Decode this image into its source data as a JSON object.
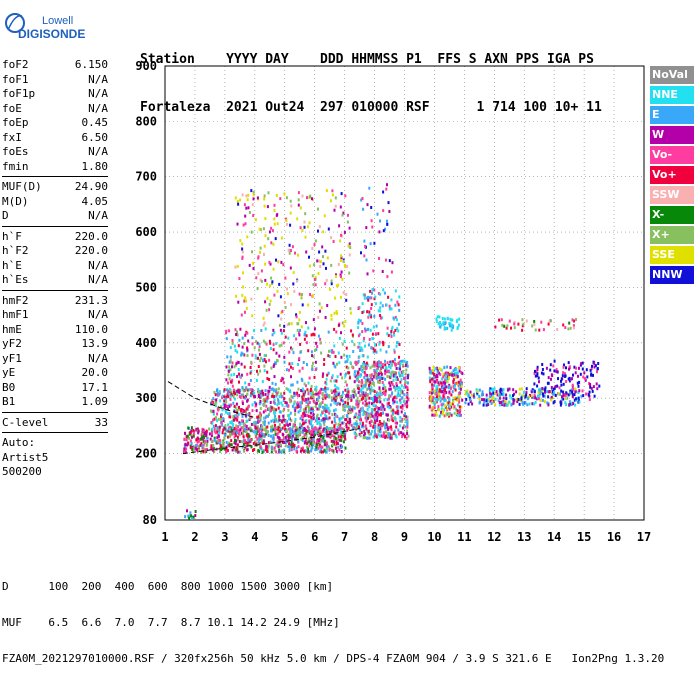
{
  "logo": {
    "line1": "Lowell",
    "line2": "DIGISONDE"
  },
  "header": {
    "line1": "Station    YYYY DAY    DDD HHMMSS P1  FFS S AXN PPS IGA PS",
    "line2": "Fortaleza  2021 Out24  297 010000 RSF      1 714 100 10+ 11"
  },
  "params": [
    {
      "type": "row",
      "label": "foF2",
      "value": "6.150"
    },
    {
      "type": "row",
      "label": "foF1",
      "value": "N/A"
    },
    {
      "type": "row",
      "label": "foF1p",
      "value": "N/A"
    },
    {
      "type": "row",
      "label": "foE",
      "value": "N/A"
    },
    {
      "type": "row",
      "label": "foEp",
      "value": "0.45"
    },
    {
      "type": "row",
      "label": "fxI",
      "value": "6.50"
    },
    {
      "type": "row",
      "label": "foEs",
      "value": "N/A"
    },
    {
      "type": "row",
      "label": "fmin",
      "value": "1.80"
    },
    {
      "type": "sep"
    },
    {
      "type": "row",
      "label": "MUF(D)",
      "value": "24.90"
    },
    {
      "type": "row",
      "label": "M(D)",
      "value": "4.05"
    },
    {
      "type": "row",
      "label": "D",
      "value": "N/A"
    },
    {
      "type": "sep"
    },
    {
      "type": "row",
      "label": "h`F",
      "value": "220.0"
    },
    {
      "type": "row",
      "label": "h`F2",
      "value": "220.0"
    },
    {
      "type": "row",
      "label": "h`E",
      "value": "N/A"
    },
    {
      "type": "row",
      "label": "h`Es",
      "value": "N/A"
    },
    {
      "type": "sep"
    },
    {
      "type": "row",
      "label": "hmF2",
      "value": "231.3"
    },
    {
      "type": "row",
      "label": "hmF1",
      "value": "N/A"
    },
    {
      "type": "row",
      "label": "hmE",
      "value": "110.0"
    },
    {
      "type": "row",
      "label": "yF2",
      "value": "13.9"
    },
    {
      "type": "row",
      "label": "yF1",
      "value": "N/A"
    },
    {
      "type": "row",
      "label": "yE",
      "value": "20.0"
    },
    {
      "type": "row",
      "label": "B0",
      "value": "17.1"
    },
    {
      "type": "row",
      "label": "B1",
      "value": "1.09"
    },
    {
      "type": "sep"
    },
    {
      "type": "row",
      "label": "C-level",
      "value": "33"
    },
    {
      "type": "sep"
    },
    {
      "type": "text",
      "label": "Auto:"
    },
    {
      "type": "text",
      "label": "Artist5"
    },
    {
      "type": "text",
      "label": "500200"
    }
  ],
  "legend": [
    {
      "label": "NoVal",
      "color": "#909090"
    },
    {
      "label": "NNE",
      "color": "#22e0f0"
    },
    {
      "label": "E",
      "color": "#3aa8f8"
    },
    {
      "label": "W",
      "color": "#b400a8"
    },
    {
      "label": "Vo-",
      "color": "#ff3ca0"
    },
    {
      "label": "Vo+",
      "color": "#f0003c"
    },
    {
      "label": "SSW",
      "color": "#f8b0b0"
    },
    {
      "label": "X-",
      "color": "#088808"
    },
    {
      "label": "X+",
      "color": "#88c060"
    },
    {
      "label": "SSE",
      "color": "#e0e000"
    },
    {
      "label": "NNW",
      "color": "#1010d8"
    }
  ],
  "chart_data": {
    "type": "scatter",
    "xlim": [
      1,
      17
    ],
    "ylim": [
      80,
      900
    ],
    "x_ticks": [
      "1",
      "2",
      "3",
      "4",
      "5",
      "6",
      "7",
      "8",
      "9",
      "10",
      "11",
      "12",
      "13",
      "14",
      "15",
      "16",
      "17"
    ],
    "y_ticks": [
      "80",
      "200",
      "300",
      "400",
      "500",
      "600",
      "700",
      "800",
      "900"
    ],
    "grid": "dotted",
    "clusters": [
      {
        "x": [
          1.6,
          7.0
        ],
        "y": [
          205,
          250
        ],
        "n": 700,
        "colors": [
          5,
          4,
          3,
          2,
          7,
          8
        ]
      },
      {
        "x": [
          2.5,
          7.3
        ],
        "y": [
          240,
          320
        ],
        "n": 800,
        "colors": [
          2,
          1,
          4,
          5,
          3,
          8
        ]
      },
      {
        "x": [
          3.0,
          7.3
        ],
        "y": [
          300,
          430
        ],
        "n": 350,
        "colors": [
          1,
          2,
          3,
          4,
          5,
          8
        ]
      },
      {
        "x": [
          3.3,
          7.2
        ],
        "y": [
          430,
          680
        ],
        "n": 300,
        "colors": [
          9,
          9,
          6,
          10,
          3,
          4,
          8
        ]
      },
      {
        "x": [
          7.3,
          9.1
        ],
        "y": [
          230,
          370
        ],
        "n": 650,
        "colors": [
          5,
          4,
          3,
          2,
          1,
          8
        ]
      },
      {
        "x": [
          7.4,
          8.8
        ],
        "y": [
          360,
          500
        ],
        "n": 150,
        "colors": [
          1,
          1,
          2,
          4,
          5
        ]
      },
      {
        "x": [
          7.5,
          8.6
        ],
        "y": [
          520,
          690
        ],
        "n": 40,
        "colors": [
          10,
          3,
          4,
          2
        ]
      },
      {
        "x": [
          9.8,
          10.9
        ],
        "y": [
          270,
          360
        ],
        "n": 300,
        "colors": [
          5,
          4,
          1,
          2,
          3,
          9
        ]
      },
      {
        "x": [
          10.0,
          10.8
        ],
        "y": [
          425,
          450
        ],
        "n": 40,
        "colors": [
          1,
          2
        ]
      },
      {
        "x": [
          11.0,
          14.9
        ],
        "y": [
          290,
          320
        ],
        "n": 260,
        "colors": [
          9,
          2,
          10,
          1,
          3
        ]
      },
      {
        "x": [
          12.0,
          14.7
        ],
        "y": [
          425,
          445
        ],
        "n": 40,
        "colors": [
          6,
          5,
          4,
          7,
          8
        ]
      },
      {
        "x": [
          13.3,
          15.5
        ],
        "y": [
          300,
          370
        ],
        "n": 140,
        "colors": [
          10,
          10,
          3,
          4
        ]
      },
      {
        "x": [
          1.6,
          2.0
        ],
        "y": [
          85,
          100
        ],
        "n": 12,
        "colors": [
          7,
          3,
          2
        ]
      }
    ],
    "curves": [
      {
        "name": "virtual",
        "x": [
          1.6,
          3,
          4,
          5,
          6,
          7,
          7.5
        ],
        "y": [
          200,
          210,
          215,
          222,
          230,
          240,
          245
        ]
      },
      {
        "name": "upper",
        "x": [
          1.1,
          2,
          3,
          4
        ],
        "y": [
          330,
          300,
          280,
          265
        ]
      }
    ]
  },
  "footer": {
    "line1": "D      100  200  400  600  800 1000 1500 3000 [km]",
    "line2": "MUF    6.5  6.6  7.0  7.7  8.7 10.1 14.2 24.9 [MHz]",
    "line3": "FZA0M_2021297010000.RSF / 320fx256h 50 kHz 5.0 km / DPS-4 FZA0M 904 / 3.9 S 321.6 E   Ion2Png 1.3.20"
  }
}
